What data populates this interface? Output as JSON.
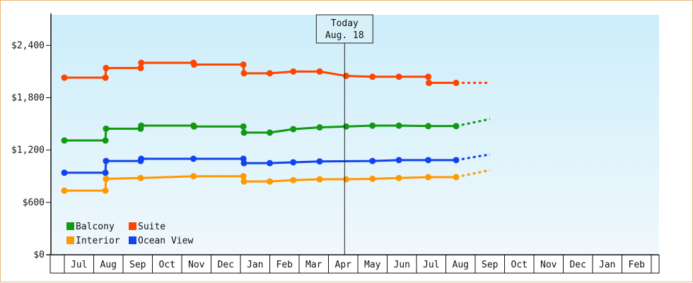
{
  "chart_data": {
    "type": "line",
    "ylim": [
      0,
      2750
    ],
    "yticks": [
      {
        "value": 0,
        "label": "$0"
      },
      {
        "value": 600,
        "label": "$600"
      },
      {
        "value": 1200,
        "label": "$1,200"
      },
      {
        "value": 1800,
        "label": "$1,800"
      },
      {
        "value": 2400,
        "label": "$2,400"
      }
    ],
    "x_range": [
      0,
      14.5
    ],
    "months": [
      {
        "label": "Jul"
      },
      {
        "label": "Aug"
      },
      {
        "label": "Sep"
      },
      {
        "label": "Oct"
      },
      {
        "label": "Nov"
      },
      {
        "label": "Dec"
      },
      {
        "label": "Jan"
      },
      {
        "label": "Feb"
      },
      {
        "label": "Mar"
      },
      {
        "label": "Apr"
      },
      {
        "label": "May"
      },
      {
        "label": "Jun"
      },
      {
        "label": "Jul"
      },
      {
        "label": "Aug"
      },
      {
        "label": "Sep"
      },
      {
        "label": "Oct"
      },
      {
        "label": "Nov"
      },
      {
        "label": "Dec"
      },
      {
        "label": "Jan"
      },
      {
        "label": "Feb"
      }
    ],
    "today": {
      "x": 9.55,
      "line1": "Today",
      "line2": "Aug. 18"
    },
    "series": [
      {
        "name": "Suite",
        "color": "#ff4400",
        "points": [
          [
            0,
            2030
          ],
          [
            1.4,
            2030
          ],
          [
            1.42,
            2140
          ],
          [
            2.6,
            2140
          ],
          [
            2.62,
            2200
          ],
          [
            4.4,
            2200
          ],
          [
            4.42,
            2180
          ],
          [
            6.1,
            2180
          ],
          [
            6.12,
            2080
          ],
          [
            7.0,
            2080
          ],
          [
            7.8,
            2100
          ],
          [
            8.7,
            2100
          ],
          [
            9.6,
            2050
          ],
          [
            10.5,
            2040
          ],
          [
            11.4,
            2040
          ],
          [
            12.4,
            2040
          ],
          [
            12.42,
            1970
          ],
          [
            13.35,
            1970
          ]
        ],
        "forecast": [
          [
            13.35,
            1970
          ],
          [
            14.5,
            1970
          ]
        ]
      },
      {
        "name": "Balcony",
        "color": "#119911",
        "points": [
          [
            0,
            1310
          ],
          [
            1.4,
            1310
          ],
          [
            1.42,
            1445
          ],
          [
            2.6,
            1445
          ],
          [
            2.62,
            1480
          ],
          [
            4.4,
            1480
          ],
          [
            4.42,
            1470
          ],
          [
            6.1,
            1470
          ],
          [
            6.12,
            1400
          ],
          [
            7.0,
            1400
          ],
          [
            7.8,
            1440
          ],
          [
            8.7,
            1460
          ],
          [
            9.6,
            1470
          ],
          [
            10.5,
            1480
          ],
          [
            11.4,
            1480
          ],
          [
            12.4,
            1475
          ],
          [
            13.35,
            1475
          ]
        ],
        "forecast": [
          [
            13.35,
            1475
          ],
          [
            14.5,
            1555
          ]
        ]
      },
      {
        "name": "Ocean View",
        "color": "#1144ee",
        "points": [
          [
            0,
            940
          ],
          [
            1.4,
            940
          ],
          [
            1.42,
            1075
          ],
          [
            2.6,
            1075
          ],
          [
            2.62,
            1100
          ],
          [
            4.4,
            1100
          ],
          [
            6.1,
            1100
          ],
          [
            6.12,
            1050
          ],
          [
            7.0,
            1050
          ],
          [
            7.8,
            1060
          ],
          [
            8.7,
            1070
          ],
          [
            10.5,
            1075
          ],
          [
            11.4,
            1085
          ],
          [
            12.4,
            1085
          ],
          [
            13.35,
            1085
          ]
        ],
        "forecast": [
          [
            13.35,
            1085
          ],
          [
            14.5,
            1150
          ]
        ]
      },
      {
        "name": "Interior",
        "color": "#ff9900",
        "points": [
          [
            0,
            735
          ],
          [
            1.4,
            735
          ],
          [
            1.42,
            870
          ],
          [
            2.6,
            880
          ],
          [
            4.4,
            900
          ],
          [
            6.1,
            900
          ],
          [
            6.12,
            840
          ],
          [
            7.0,
            840
          ],
          [
            7.8,
            855
          ],
          [
            8.7,
            865
          ],
          [
            9.6,
            865
          ],
          [
            10.5,
            870
          ],
          [
            11.4,
            880
          ],
          [
            12.4,
            890
          ],
          [
            13.35,
            890
          ]
        ],
        "forecast": [
          [
            13.35,
            890
          ],
          [
            14.5,
            970
          ]
        ]
      }
    ],
    "legend": [
      {
        "name": "Balcony",
        "color": "#119911"
      },
      {
        "name": "Suite",
        "color": "#ff4400"
      },
      {
        "name": "Interior",
        "color": "#ff9900"
      },
      {
        "name": "Ocean View",
        "color": "#1144ee"
      }
    ],
    "legend_placement": "bottom-left",
    "background_gradient": [
      "#cceefa",
      "#f0f8fc"
    ]
  }
}
